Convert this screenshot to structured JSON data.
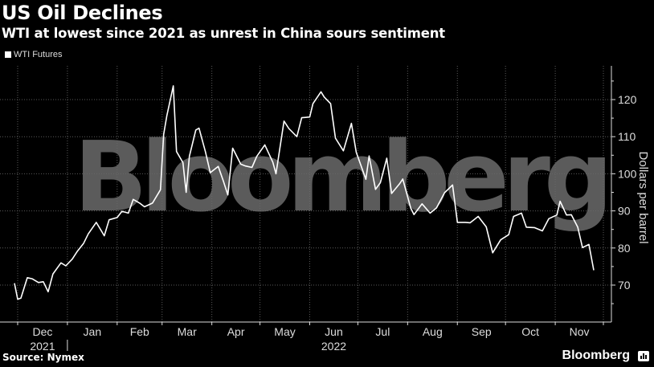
{
  "header": {
    "title": "US Oil Declines",
    "subtitle": "WTI at lowest since 2021 as unrest in China sours sentiment"
  },
  "legend": {
    "items": [
      {
        "label": "WTI Futures",
        "color": "#ffffff"
      }
    ]
  },
  "watermark": "Bloomberg",
  "footer": {
    "source": "Source: Nymex",
    "brand": "Bloomberg"
  },
  "colors": {
    "background": "#000000",
    "line": "#ffffff",
    "grid": "#555555",
    "watermark": "#6b6b6b"
  },
  "chart_data": {
    "type": "line",
    "title": "US Oil Declines",
    "subtitle": "WTI at lowest since 2021 as unrest in China sours sentiment",
    "xlabel": "",
    "ylabel": "Dollars per barrel",
    "ylim": [
      62,
      128
    ],
    "yticks": [
      70,
      80,
      90,
      100,
      110,
      120
    ],
    "xticks": [
      "Dec",
      "Jan",
      "Feb",
      "Mar",
      "Apr",
      "May",
      "Jun",
      "Jul",
      "Aug",
      "Sep",
      "Oct",
      "Nov"
    ],
    "xtick_years": {
      "Dec": "2021",
      "Jun": "2022"
    },
    "grid": true,
    "legend_position": "top-left",
    "series": [
      {
        "name": "WTI Futures",
        "x": [
          "2021-11-29",
          "2021-12-01",
          "2021-12-03",
          "2021-12-07",
          "2021-12-10",
          "2021-12-14",
          "2021-12-17",
          "2021-12-20",
          "2021-12-23",
          "2021-12-28",
          "2021-12-31",
          "2022-01-04",
          "2022-01-07",
          "2022-01-11",
          "2022-01-14",
          "2022-01-19",
          "2022-01-24",
          "2022-01-27",
          "2022-02-01",
          "2022-02-04",
          "2022-02-08",
          "2022-02-11",
          "2022-02-15",
          "2022-02-18",
          "2022-02-23",
          "2022-02-28",
          "2022-03-02",
          "2022-03-04",
          "2022-03-08",
          "2022-03-10",
          "2022-03-14",
          "2022-03-16",
          "2022-03-18",
          "2022-03-22",
          "2022-03-24",
          "2022-03-28",
          "2022-03-31",
          "2022-04-05",
          "2022-04-08",
          "2022-04-11",
          "2022-04-14",
          "2022-04-19",
          "2022-04-22",
          "2022-04-26",
          "2022-04-29",
          "2022-05-04",
          "2022-05-09",
          "2022-05-11",
          "2022-05-16",
          "2022-05-19",
          "2022-05-24",
          "2022-05-27",
          "2022-06-01",
          "2022-06-03",
          "2022-06-08",
          "2022-06-10",
          "2022-06-14",
          "2022-06-17",
          "2022-06-22",
          "2022-06-27",
          "2022-06-30",
          "2022-07-06",
          "2022-07-08",
          "2022-07-12",
          "2022-07-15",
          "2022-07-19",
          "2022-07-22",
          "2022-07-27",
          "2022-07-29",
          "2022-08-03",
          "2022-08-05",
          "2022-08-10",
          "2022-08-15",
          "2022-08-19",
          "2022-08-24",
          "2022-08-29",
          "2022-09-01",
          "2022-09-06",
          "2022-09-09",
          "2022-09-14",
          "2022-09-19",
          "2022-09-23",
          "2022-09-28",
          "2022-10-03",
          "2022-10-06",
          "2022-10-11",
          "2022-10-14",
          "2022-10-19",
          "2022-10-24",
          "2022-10-28",
          "2022-11-02",
          "2022-11-04",
          "2022-11-08",
          "2022-11-11",
          "2022-11-15",
          "2022-11-18",
          "2022-11-22",
          "2022-11-25"
        ],
        "values": [
          70.5,
          66.2,
          66.5,
          72.0,
          71.7,
          70.7,
          70.9,
          68.2,
          73.0,
          76.0,
          75.2,
          77.0,
          79.0,
          81.2,
          83.8,
          86.9,
          83.3,
          87.6,
          88.2,
          89.9,
          89.4,
          93.1,
          92.1,
          91.1,
          92.1,
          95.7,
          110.6,
          115.7,
          123.7,
          106.0,
          103.0,
          95.0,
          104.7,
          111.8,
          112.3,
          105.9,
          100.3,
          102.0,
          98.3,
          94.3,
          106.9,
          102.6,
          102.1,
          101.7,
          104.7,
          107.8,
          103.1,
          100.0,
          114.2,
          112.2,
          110.0,
          115.1,
          115.3,
          118.9,
          122.1,
          120.7,
          118.9,
          109.6,
          106.2,
          113.6,
          105.8,
          98.5,
          104.8,
          95.8,
          97.6,
          104.2,
          94.7,
          97.3,
          98.6,
          90.7,
          89.0,
          91.9,
          89.4,
          90.8,
          94.9,
          97.0,
          86.9,
          86.9,
          86.8,
          88.5,
          85.7,
          78.7,
          82.2,
          83.6,
          88.5,
          89.4,
          85.6,
          85.5,
          84.6,
          87.9,
          88.9,
          92.6,
          88.9,
          88.96,
          85.6,
          80.1,
          80.95,
          74.0
        ]
      }
    ]
  }
}
